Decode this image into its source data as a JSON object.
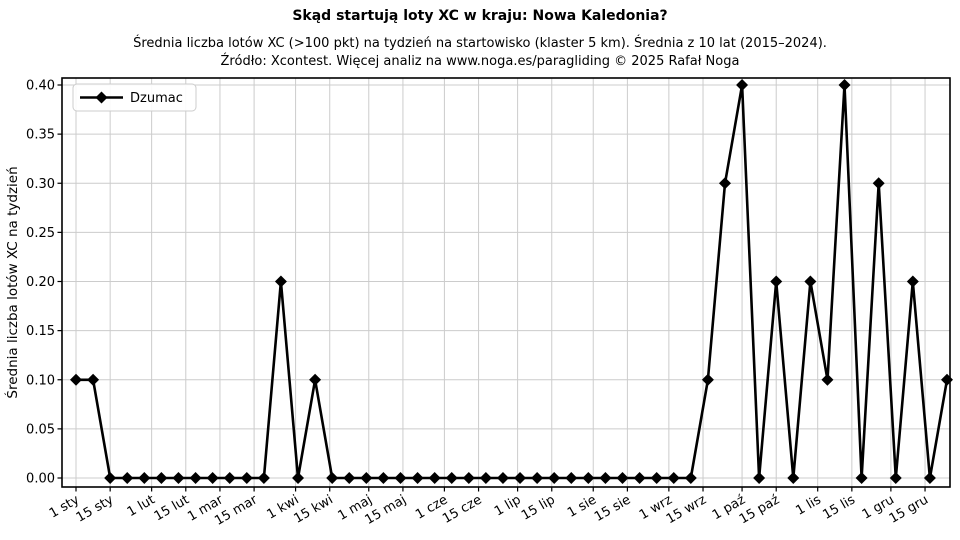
{
  "chart_data": {
    "type": "line",
    "title": "Skąd startują loty XC w kraju: Nowa Kaledonia?",
    "subtitle1": "Średnia liczba lotów XC (>100 pkt) na tydzień na startowisko (klaster 5 km). Średnia z 10 lat (2015–2024).",
    "subtitle2": "Źródło: Xcontest. Więcej analiz na www.noga.es/paragliding © 2025 Rafał Noga",
    "ylabel": "Średnia liczba lotów XC na tydzień",
    "xlabel": "",
    "ylim": [
      0,
      0.4
    ],
    "grid": true,
    "legend": {
      "position": "upper left",
      "entries": [
        "Dzumac"
      ]
    },
    "colors": {
      "series": "#000000",
      "grid": "#cccccc",
      "background": "#ffffff",
      "legend_border": "#cccccc",
      "text": "#000000"
    },
    "y_ticks": [
      0,
      0.05,
      0.1,
      0.15,
      0.2,
      0.25,
      0.3,
      0.35,
      0.4
    ],
    "x_ticks": [
      {
        "label": "1 sty",
        "day": 0
      },
      {
        "label": "15 sty",
        "day": 14
      },
      {
        "label": "1 lut",
        "day": 31
      },
      {
        "label": "15 lut",
        "day": 45
      },
      {
        "label": "1 mar",
        "day": 59
      },
      {
        "label": "15 mar",
        "day": 73
      },
      {
        "label": "1 kwi",
        "day": 90
      },
      {
        "label": "15 kwi",
        "day": 104
      },
      {
        "label": "1 maj",
        "day": 120
      },
      {
        "label": "15 maj",
        "day": 134
      },
      {
        "label": "1 cze",
        "day": 151
      },
      {
        "label": "15 cze",
        "day": 165
      },
      {
        "label": "1 lip",
        "day": 181
      },
      {
        "label": "15 lip",
        "day": 195
      },
      {
        "label": "1 sie",
        "day": 212
      },
      {
        "label": "15 sie",
        "day": 226
      },
      {
        "label": "1 wrz",
        "day": 243
      },
      {
        "label": "15 wrz",
        "day": 257
      },
      {
        "label": "1 paź",
        "day": 273
      },
      {
        "label": "15 paź",
        "day": 287
      },
      {
        "label": "1 lis",
        "day": 304
      },
      {
        "label": "15 lis",
        "day": 318
      },
      {
        "label": "1 gru",
        "day": 334
      },
      {
        "label": "15 gru",
        "day": 348
      }
    ],
    "series": [
      {
        "name": "Dzumac",
        "marker": "diamond",
        "line_width": 2.6,
        "x_days": [
          0,
          7,
          14,
          21,
          28,
          35,
          42,
          49,
          56,
          63,
          70,
          77,
          84,
          91,
          98,
          105,
          112,
          119,
          126,
          133,
          140,
          147,
          154,
          161,
          168,
          175,
          182,
          189,
          196,
          203,
          210,
          217,
          224,
          231,
          238,
          245,
          252,
          259,
          266,
          273,
          280,
          287,
          294,
          301,
          308,
          315,
          322,
          329,
          336,
          343,
          350,
          357
        ],
        "values": [
          0.1,
          0.1,
          0,
          0,
          0,
          0,
          0,
          0,
          0,
          0,
          0,
          0,
          0.2,
          0,
          0.1,
          0,
          0,
          0,
          0,
          0,
          0,
          0,
          0,
          0,
          0,
          0,
          0,
          0,
          0,
          0,
          0,
          0,
          0,
          0,
          0,
          0,
          0,
          0.1,
          0.3,
          0.4,
          0,
          0.2,
          0,
          0.2,
          0.1,
          0.4,
          0,
          0.3,
          0,
          0.2,
          0,
          0.1
        ]
      }
    ]
  }
}
